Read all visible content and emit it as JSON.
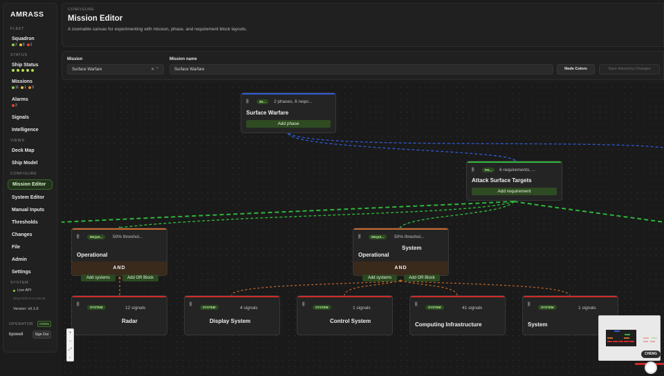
{
  "brand": "AMRASS",
  "sidebar": {
    "fleet_label": "FLEET",
    "squadron": {
      "label": "Squadron",
      "counts": [
        "2",
        "3",
        "1"
      ]
    },
    "status_label": "STATUS",
    "ship_status": {
      "label": "Ship Status"
    },
    "missions": {
      "label": "Missions",
      "counts": [
        "11",
        "1",
        "3"
      ]
    },
    "alarms": {
      "label": "Alarms",
      "counts": [
        "2"
      ]
    },
    "signals": "Signals",
    "intelligence": "Intelligence",
    "views_label": "VIEWS",
    "deck_map": "Deck Map",
    "ship_model": "Ship Model",
    "configure_label": "CONFIGURE",
    "mission_editor": "Mission Editor",
    "system_editor": "System Editor",
    "manual_inputs": "Manual Inputs",
    "thresholds": "Thresholds",
    "changes": "Changes",
    "file": "File",
    "admin": "Admin",
    "settings": "Settings",
    "system_label": "SYSTEM",
    "live_api": "Live API",
    "build_info": "bkng+f12f+0.3.4+66 90",
    "version": "Version: v0.1.0",
    "operator_label": "OPERATOR",
    "admin_badge": "ADMIN",
    "username": "bpowell",
    "sign_out": "Sign Out"
  },
  "header": {
    "eyebrow": "CONFIGURE",
    "title": "Mission Editor",
    "description": "A zoomable canvas for experimenting with mission, phase, and requirement block layouts."
  },
  "form": {
    "mission_label": "Mission",
    "mission_value": "Surface Warfare",
    "mission_name_label": "Mission name",
    "mission_name_value": "Surface Warfare",
    "node_colors": "Node Colors",
    "save_hierarchy": "Save Hierarchy Changes"
  },
  "nodes": {
    "mission": {
      "badge": "MI...",
      "summary": "2 phases, 6 requi...",
      "name": "Surface Warfare",
      "action": "Add phase"
    },
    "phase": {
      "badge": "PH...",
      "summary": "6 requirements, ...",
      "name": "Attack Surface Targets",
      "action": "Add requirement"
    },
    "req1": {
      "badge": "REQUI...",
      "summary": "50% threshol...",
      "name": "Operational",
      "logic": "AND",
      "add_systems": "Add systems",
      "add_or": "Add OR Block"
    },
    "req2": {
      "badge": "REQUI...",
      "summary": "50% threshol...",
      "name_line1": "System",
      "name_line2": "Operational",
      "logic": "AND",
      "add_systems": "Add systems",
      "add_or": "Add OR Block"
    },
    "sys1": {
      "badge": "SYSTEM",
      "summary": "12 signals",
      "name": "Radar"
    },
    "sys2": {
      "badge": "SYSTEM",
      "summary": "4 signals",
      "name": "Display System"
    },
    "sys3": {
      "badge": "SYSTEM",
      "summary": "1 signals",
      "name": "Control System"
    },
    "sys4": {
      "badge": "SYSTEM",
      "summary": "41 signals",
      "name": "Computing Infrastructure"
    },
    "sys5": {
      "badge": "SYSTEM",
      "summary": "1 signals",
      "name": "System"
    }
  },
  "user_chip": "CHENG",
  "colors": {
    "mission": "#2f5bd8",
    "phase": "#2fb83a",
    "requirement": "#c8692a",
    "system": "#d02a2a"
  }
}
